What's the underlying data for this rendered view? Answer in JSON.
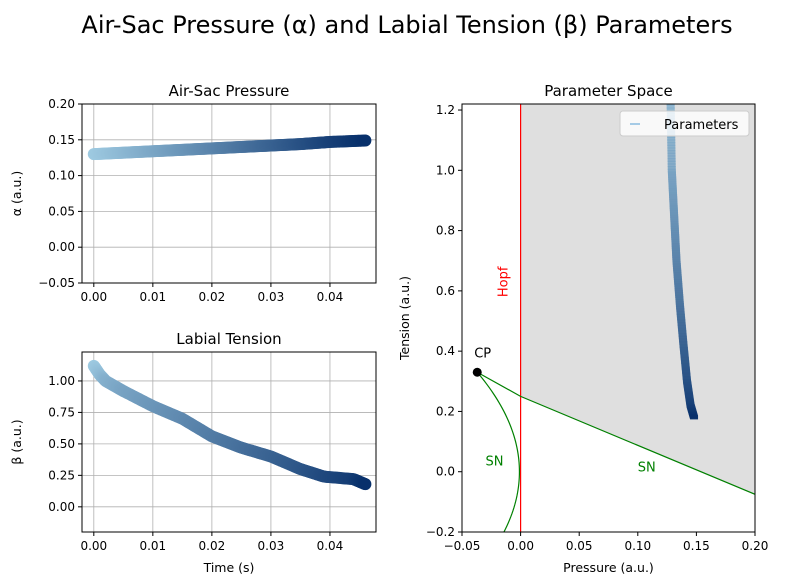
{
  "suptitle": "Air-Sac Pressure (α) and Labial Tension (β) Parameters",
  "chart_data": [
    {
      "type": "scatter",
      "title": "Air-Sac Pressure",
      "xlabel": "",
      "ylabel": "α (a.u.)",
      "xlim": [
        -0.002,
        0.0478
      ],
      "ylim": [
        -0.05,
        0.2
      ],
      "xticks": [
        "0.00",
        "0.01",
        "0.02",
        "0.03",
        "0.04"
      ],
      "xtick_values": [
        0,
        0.01,
        0.02,
        0.03,
        0.04
      ],
      "yticks": [
        "−0.05",
        "0.00",
        "0.05",
        "0.10",
        "0.15",
        "0.20"
      ],
      "ytick_values": [
        -0.05,
        0,
        0.05,
        0.1,
        0.15,
        0.2
      ],
      "grid": true,
      "colormap": "Blues",
      "x": [
        0,
        0.005,
        0.01,
        0.015,
        0.02,
        0.025,
        0.03,
        0.035,
        0.04,
        0.046
      ],
      "y": [
        0.13,
        0.132,
        0.134,
        0.136,
        0.138,
        0.14,
        0.142,
        0.144,
        0.147,
        0.149
      ]
    },
    {
      "type": "scatter",
      "title": "Labial Tension",
      "xlabel": "Time (s)",
      "ylabel": "β (a.u.)",
      "xlim": [
        -0.002,
        0.0478
      ],
      "ylim": [
        -0.2,
        1.23
      ],
      "xticks": [
        "0.00",
        "0.01",
        "0.02",
        "0.03",
        "0.04"
      ],
      "xtick_values": [
        0,
        0.01,
        0.02,
        0.03,
        0.04
      ],
      "yticks": [
        "0.00",
        "0.25",
        "0.50",
        "0.75",
        "1.00"
      ],
      "ytick_values": [
        0,
        0.25,
        0.5,
        0.75,
        1.0
      ],
      "grid": true,
      "colormap": "Blues",
      "x": [
        0,
        0.001,
        0.002,
        0.005,
        0.01,
        0.015,
        0.02,
        0.025,
        0.03,
        0.035,
        0.039,
        0.044,
        0.046
      ],
      "y": [
        1.12,
        1.05,
        1.0,
        0.92,
        0.8,
        0.7,
        0.56,
        0.47,
        0.4,
        0.3,
        0.24,
        0.22,
        0.18
      ]
    },
    {
      "type": "line",
      "title": "Parameter Space",
      "xlabel": "Pressure (a.u.)",
      "ylabel": "Tension (a.u.)",
      "xlim": [
        -0.05,
        0.2
      ],
      "ylim": [
        -0.2,
        1.22
      ],
      "xticks": [
        "−0.05",
        "0.00",
        "0.05",
        "0.10",
        "0.15",
        "0.20"
      ],
      "xtick_values": [
        -0.05,
        0,
        0.05,
        0.1,
        0.15,
        0.2
      ],
      "yticks": [
        "−0.2",
        "0.0",
        "0.2",
        "0.4",
        "0.6",
        "0.8",
        "1.0",
        "1.2"
      ],
      "ytick_values": [
        -0.2,
        0,
        0.2,
        0.4,
        0.6,
        0.8,
        1.0,
        1.2
      ],
      "grid": false,
      "legend": {
        "position": "top-right",
        "entries": [
          "Parameters"
        ]
      },
      "series": [
        {
          "name": "Parameters",
          "x": [
            0.128,
            0.129,
            0.131,
            0.133,
            0.136,
            0.139,
            0.142,
            0.145,
            0.148
          ],
          "y": [
            1.22,
            1.0,
            0.85,
            0.7,
            0.55,
            0.42,
            0.3,
            0.22,
            0.18
          ]
        }
      ],
      "hopf": {
        "label": "Hopf",
        "x": 0,
        "color": "#ff0000"
      },
      "sn": {
        "label": "SN",
        "color": "#008000",
        "upper": {
          "x": [
            -0.037,
            0,
            0.2
          ],
          "y": [
            0.33,
            0.25,
            -0.075
          ]
        },
        "lower_vertex": [
          -0.001,
          0
        ]
      },
      "cp": {
        "label": "CP",
        "x": -0.037,
        "y": 0.33
      },
      "shaded_color": "#dfdfdf"
    }
  ]
}
